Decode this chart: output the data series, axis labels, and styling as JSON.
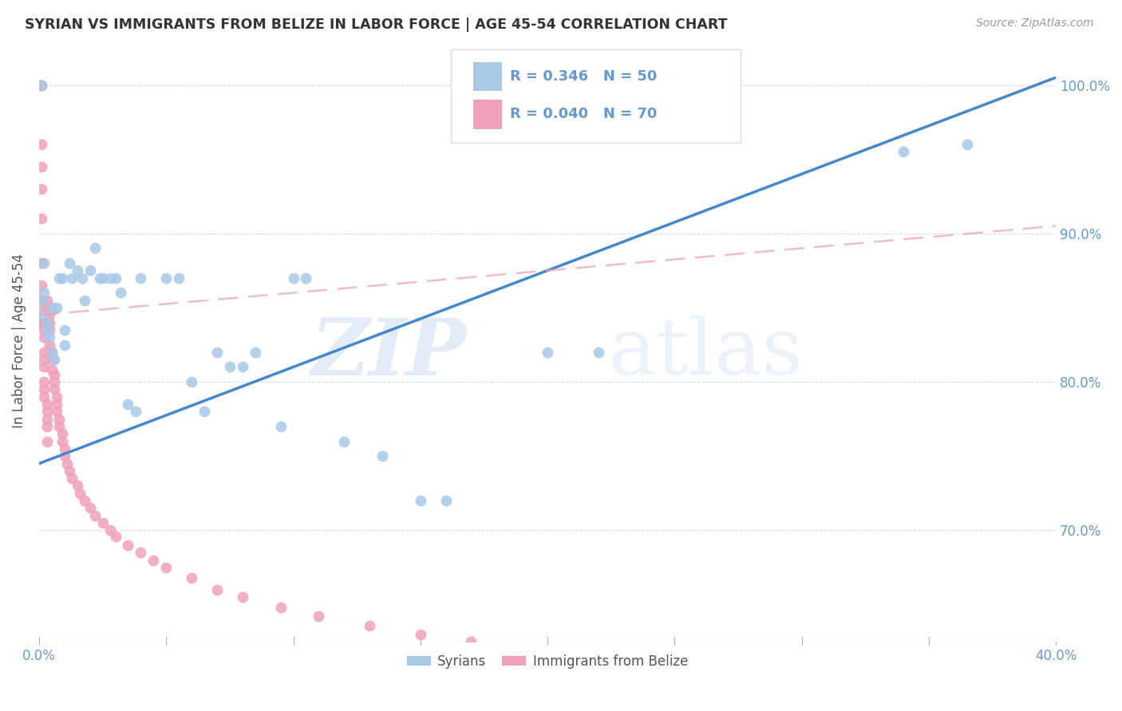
{
  "title": "SYRIAN VS IMMIGRANTS FROM BELIZE IN LABOR FORCE | AGE 45-54 CORRELATION CHART",
  "source": "Source: ZipAtlas.com",
  "ylabel": "In Labor Force | Age 45-54",
  "xlim": [
    0.0,
    0.4
  ],
  "ylim": [
    0.625,
    1.03
  ],
  "xtick_vals": [
    0.0,
    0.05,
    0.1,
    0.15,
    0.2,
    0.25,
    0.3,
    0.35,
    0.4
  ],
  "xtick_labels_show": [
    "0.0%",
    "",
    "",
    "",
    "",
    "",
    "",
    "",
    "40.0%"
  ],
  "ytick_vals": [
    0.7,
    0.8,
    0.9,
    1.0
  ],
  "ytick_labels": [
    "70.0%",
    "80.0%",
    "90.0%",
    "100.0%"
  ],
  "syrian_color": "#A8C8E8",
  "belize_color": "#F0A0B8",
  "syrian_R": "0.346",
  "syrian_N": "50",
  "belize_R": "0.040",
  "belize_N": "70",
  "legend_label_syrian": "Syrians",
  "legend_label_belize": "Immigrants from Belize",
  "watermark_zip": "ZIP",
  "watermark_atlas": "atlas",
  "syrian_line_color": "#4488CC",
  "belize_line_color": "#E8A0B8",
  "syrian_line": [
    0.0,
    0.4,
    0.745,
    1.005
  ],
  "belize_line": [
    0.0,
    0.4,
    0.845,
    0.905
  ],
  "tick_color": "#6699CC",
  "grid_color": "#CCDDEE"
}
